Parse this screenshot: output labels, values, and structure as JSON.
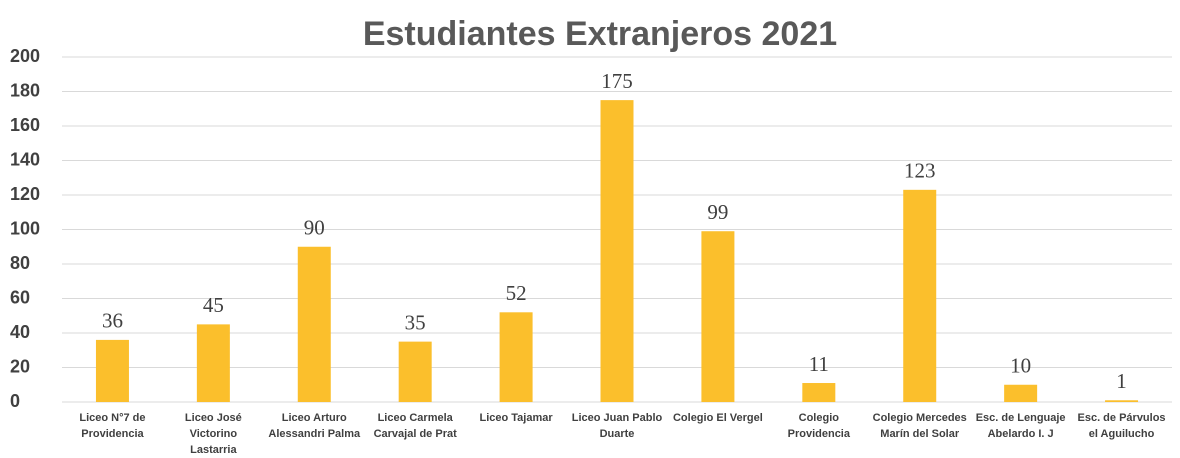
{
  "chart_data": {
    "type": "bar",
    "title": "Estudiantes Extranjeros 2021",
    "categories": [
      "Liceo N°7 de Providencia",
      "Liceo José Victorino Lastarria",
      "Liceo Arturo Alessandri Palma",
      "Liceo Carmela Carvajal de Prat",
      "Liceo Tajamar",
      "Liceo Juan Pablo Duarte",
      "Colegio El Vergel",
      "Colegio Providencia",
      "Colegio Mercedes Marín del Solar",
      "Esc. de Lenguaje Abelardo I. J",
      "Esc. de Párvulos el Aguilucho"
    ],
    "values": [
      36,
      45,
      90,
      35,
      52,
      175,
      99,
      11,
      123,
      10,
      1
    ],
    "color": "#fbbf2c",
    "ylim": [
      0,
      200
    ],
    "yticks": [
      0,
      20,
      40,
      60,
      80,
      100,
      120,
      140,
      160,
      180,
      200
    ],
    "grid": true
  }
}
